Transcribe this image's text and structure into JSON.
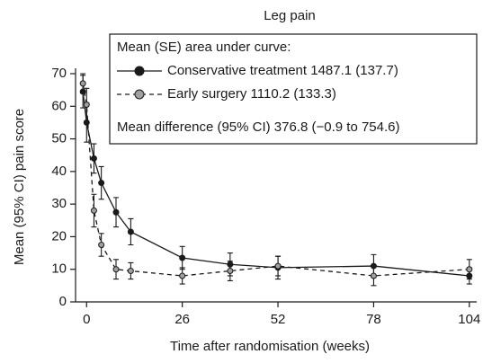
{
  "chart_data": {
    "type": "line",
    "title": "Leg pain",
    "xlabel": "Time after randomisation (weeks)",
    "ylabel": "Mean (95% CI) pain score",
    "legend_title": "Mean (SE) area under curve:",
    "annotation": "Mean difference (95% CI) 376.8 (−0.9 to 754.6)",
    "xlim": [
      -3,
      106
    ],
    "xticks": [
      0,
      26,
      52,
      78,
      104
    ],
    "ylim": [
      0,
      70
    ],
    "yticks": [
      0,
      10,
      20,
      30,
      40,
      50,
      60,
      70
    ],
    "series": [
      {
        "name": "Conservative treatment 1487.1 (137.7)",
        "color": "#1a1a1a",
        "marker_color": "#1a1a1a",
        "linestyle": "solid",
        "x": [
          -1,
          0,
          2,
          4,
          8,
          12,
          26,
          39,
          52,
          78,
          104
        ],
        "values": [
          64.5,
          55,
          44,
          36.5,
          27.5,
          21.5,
          13.5,
          11.5,
          10.5,
          11,
          8
        ],
        "errors": [
          5,
          6,
          4.5,
          5,
          4.5,
          4,
          3.5,
          3.5,
          3.5,
          3.5,
          2.5
        ]
      },
      {
        "name": "Early surgery 1110.2 (133.3)",
        "color": "#1a1a1a",
        "marker_color": "#a0a0a0",
        "linestyle": "dashed",
        "x": [
          -1,
          0,
          2,
          4,
          8,
          12,
          26,
          39,
          52,
          78,
          104
        ],
        "values": [
          67,
          60.5,
          28,
          17.5,
          10,
          9.5,
          8,
          9.5,
          11,
          8,
          10
        ],
        "errors": [
          3,
          5,
          5,
          3.5,
          3,
          2.5,
          2.5,
          3,
          3,
          3,
          3
        ]
      }
    ]
  }
}
